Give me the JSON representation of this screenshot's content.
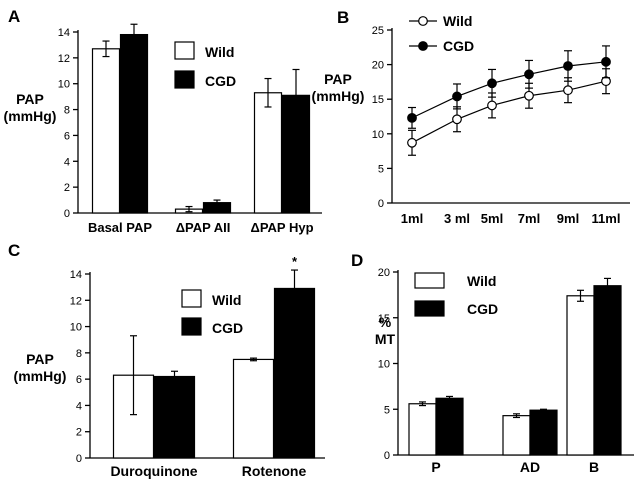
{
  "chart_data": [
    {
      "panel": "A",
      "type": "bar",
      "categories": [
        "Basal PAP",
        "ΔPAP AII",
        "ΔPAP Hyp"
      ],
      "series": [
        {
          "name": "Wild",
          "color": "#ffffff",
          "values": [
            12.7,
            0.3,
            9.3
          ],
          "errors": [
            0.6,
            0.2,
            1.1
          ]
        },
        {
          "name": "CGD",
          "color": "#000000",
          "values": [
            13.8,
            0.8,
            9.1
          ],
          "errors": [
            0.8,
            0.2,
            2.0
          ]
        }
      ],
      "ylabel": [
        "PAP",
        "(mmHg)"
      ],
      "ylim": [
        0,
        14
      ],
      "yticks": [
        0,
        2,
        4,
        6,
        8,
        10,
        12,
        14
      ]
    },
    {
      "panel": "B",
      "type": "line",
      "x": [
        "1ml",
        "3 ml",
        "5ml",
        "7ml",
        "9ml",
        "11ml"
      ],
      "series": [
        {
          "name": "Wild",
          "marker": "open-circle",
          "values": [
            8.7,
            12.1,
            14.1,
            15.5,
            16.3,
            17.6
          ],
          "errors": [
            1.8,
            1.8,
            1.8,
            1.8,
            1.8,
            1.8
          ]
        },
        {
          "name": "CGD",
          "marker": "filled-circle",
          "values": [
            12.3,
            15.4,
            17.3,
            18.6,
            19.8,
            20.4
          ],
          "errors": [
            1.5,
            1.8,
            2.0,
            2.0,
            2.2,
            2.3
          ]
        }
      ],
      "ylabel": [
        "PAP",
        "(mmHg)"
      ],
      "ylim": [
        0,
        25
      ],
      "yticks": [
        0,
        5,
        10,
        15,
        20,
        25
      ]
    },
    {
      "panel": "C",
      "type": "bar",
      "categories": [
        "Duroquinone",
        "Rotenone"
      ],
      "series": [
        {
          "name": "Wild",
          "color": "#ffffff",
          "values": [
            6.3,
            7.5
          ],
          "errors": [
            3.0,
            0.1
          ]
        },
        {
          "name": "CGD",
          "color": "#000000",
          "values": [
            6.2,
            12.9
          ],
          "errors": [
            0.4,
            1.4
          ]
        }
      ],
      "annotations": [
        {
          "series": "CGD",
          "category": "Rotenone",
          "text": "*"
        }
      ],
      "ylabel": [
        "PAP",
        "(mmHg)"
      ],
      "ylim": [
        0,
        14
      ],
      "yticks": [
        0,
        2,
        4,
        6,
        8,
        10,
        12,
        14
      ]
    },
    {
      "panel": "D",
      "type": "bar",
      "categories": [
        "P",
        "AD",
        "B"
      ],
      "series": [
        {
          "name": "Wild",
          "color": "#ffffff",
          "values": [
            5.6,
            4.3,
            17.4
          ],
          "errors": [
            0.2,
            0.2,
            0.6
          ]
        },
        {
          "name": "CGD",
          "color": "#000000",
          "values": [
            6.2,
            4.9,
            18.5
          ],
          "errors": [
            0.2,
            0.1,
            0.8
          ]
        }
      ],
      "ylabel": [
        "%",
        "MT"
      ],
      "ylim": [
        0,
        20
      ],
      "yticks": [
        0,
        5,
        10,
        15,
        20
      ]
    }
  ]
}
